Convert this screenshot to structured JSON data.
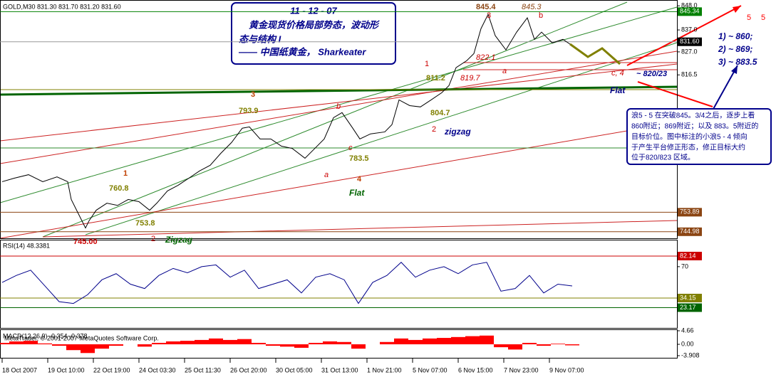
{
  "chart_data": [
    {
      "type": "line",
      "title": "GOLD,M30 831.30 831.70 831.20 831.60",
      "color": "#000000",
      "xlim": [
        0,
        947
      ],
      "x": [
        0,
        17,
        37,
        57,
        77,
        92,
        97,
        107,
        117,
        122,
        132,
        147,
        162,
        177,
        192,
        207,
        217,
        232,
        247,
        262,
        277,
        292,
        307,
        322,
        337,
        347,
        362,
        377,
        392,
        407,
        425,
        437,
        452,
        465,
        477,
        492,
        502,
        517,
        537,
        547,
        557,
        572,
        587,
        602,
        617,
        627,
        637,
        652,
        662,
        672,
        682,
        692,
        707,
        722,
        737,
        747,
        757,
        772,
        787,
        797
      ],
      "values": [
        767.8,
        769.4,
        771,
        767.8,
        770,
        767.8,
        759.7,
        753.2,
        746.7,
        750,
        754.8,
        758,
        757,
        759.7,
        758.7,
        754.8,
        758,
        763.6,
        766.2,
        769.4,
        772.7,
        775.3,
        780.8,
        785.7,
        792.2,
        792.8,
        787.3,
        787.3,
        784,
        783,
        778.5,
        782.4,
        787.3,
        797,
        799.3,
        792.2,
        787.3,
        789.6,
        790.5,
        793.8,
        805.1,
        802.5,
        801.9,
        805.1,
        808.4,
        811.6,
        819.8,
        823,
        826.2,
        837.6,
        844.1,
        834.4,
        827.9,
        836,
        842.5,
        832.7,
        836,
        831.1,
        832.7,
        830.5
      ],
      "ylim": [
        742,
        850
      ],
      "yticks": [
        {
          "value": 848,
          "label": "848.0"
        },
        {
          "value": 837,
          "label": "837.0"
        },
        {
          "value": 827,
          "label": "827.0"
        },
        816.5
      ],
      "levels": [
        {
          "value": 845.34,
          "color": "#008000"
        },
        {
          "value": 831.6,
          "label": "831.60",
          "color": "#000000"
        },
        {
          "value": 753.89,
          "color": "#8b4513"
        },
        {
          "value": 744.98,
          "color": "#8b4513"
        }
      ]
    },
    {
      "type": "line",
      "title": "RSI(14) 48.3381",
      "color": "#00008b",
      "xlim": [
        0,
        947
      ],
      "x": [
        0,
        20,
        40,
        60,
        80,
        100,
        120,
        140,
        160,
        180,
        200,
        220,
        240,
        260,
        280,
        300,
        320,
        340,
        360,
        380,
        400,
        420,
        440,
        460,
        480,
        500,
        520,
        540,
        560,
        580,
        600,
        620,
        640,
        660,
        680,
        700,
        720,
        740,
        760,
        780,
        800
      ],
      "values": [
        52,
        60,
        66,
        48,
        30,
        28,
        38,
        55,
        62,
        50,
        45,
        60,
        68,
        63,
        70,
        72,
        58,
        66,
        45,
        50,
        55,
        40,
        58,
        62,
        55,
        28,
        52,
        60,
        75,
        58,
        66,
        70,
        62,
        72,
        75,
        42,
        45,
        60,
        40,
        50,
        48
      ],
      "ylim": [
        0,
        100
      ],
      "yticks": [
        70
      ],
      "levels": [
        {
          "value": 82.14,
          "color": "#cc0000"
        },
        {
          "value": 34.15,
          "color": "#808000"
        },
        {
          "value": 23.17,
          "color": "#006400"
        }
      ]
    },
    {
      "type": "bar",
      "title": "MACD(12,26,9) -0.354 -0.378",
      "color": "#ff0000",
      "xlim": [
        0,
        947
      ],
      "x": [
        0,
        20,
        40,
        60,
        80,
        100,
        120,
        140,
        160,
        180,
        200,
        220,
        240,
        260,
        280,
        300,
        320,
        340,
        360,
        380,
        400,
        420,
        440,
        460,
        480,
        500,
        520,
        540,
        560,
        580,
        600,
        620,
        640,
        660,
        680,
        700,
        720,
        740,
        760,
        780,
        800
      ],
      "values": [
        0.5,
        1,
        1.2,
        0.3,
        -0.5,
        -2,
        -3,
        -1.5,
        -0.5,
        0,
        -0.8,
        0.5,
        1,
        1.2,
        1.5,
        2,
        1.5,
        1.8,
        0.5,
        -0.5,
        -0.8,
        -1.2,
        0.5,
        1,
        0.8,
        -1.5,
        0,
        0.8,
        2,
        1.5,
        2,
        2.2,
        2.5,
        2.8,
        3,
        -1,
        -1.8,
        0.5,
        -0.5,
        0.2,
        -0.354
      ],
      "ylim": [
        -3.908,
        4.66
      ],
      "yticks": [
        4.66,
        {
          "value": 0,
          "label": "0.00"
        },
        -3.908
      ],
      "xticks": [
        {
          "value": 0,
          "label": "18 Oct 2007"
        },
        {
          "value": 64,
          "label": "19 Oct 10:00"
        },
        {
          "value": 128,
          "label": "22 Oct 19:00"
        },
        {
          "value": 192,
          "label": "24 Oct 03:30"
        },
        {
          "value": 256,
          "label": "25 Oct 11:30"
        },
        {
          "value": 320,
          "label": "26 Oct 20:00"
        },
        {
          "value": 384,
          "label": "30 Oct 05:00"
        },
        {
          "value": 448,
          "label": "31 Oct 13:00"
        },
        {
          "value": 512,
          "label": "1 Nov 21:00"
        },
        {
          "value": 576,
          "label": "5 Nov 07:00"
        },
        {
          "value": 640,
          "label": "6 Nov 15:00"
        },
        {
          "value": 704,
          "label": "7 Nov 23:00"
        },
        {
          "value": 768,
          "label": "9 Nov 07:00"
        }
      ]
    }
  ],
  "copyright": "MetaTrader, © 2001-2007 MetaQuotes Software Corp.",
  "title_box": [
    "11 - 12 - 07",
    "黄金现货价格局部势态，波动形",
    "态与结构 I",
    "—— 中国纸黄金，    Sharkeater"
  ],
  "targets": [
    "1) ~ 860;",
    "2) ~ 869;",
    "3) ~ 883.5"
  ],
  "note": [
    "浪5 - 5 在突破845。3/4之后，逐步上看",
    "860附近；869附近；以及 883。5附近的",
    "目标价位。图中标注的小浪5 - 4 倾向",
    "于产生平台修正形态，修正目标大约",
    "位于820/823 区域。"
  ],
  "annotations": [
    "845.4",
    "845.3",
    "3",
    "b",
    "811.2",
    "804.7",
    "793.9",
    "783.5",
    "760.8",
    "753.8",
    "745.00",
    "822.1",
    "819.7",
    "a",
    "a",
    "b",
    "c",
    "1",
    "2",
    "zigzag",
    "3",
    "4",
    "Flat",
    "1",
    "2",
    "Zigzag",
    "c, 4",
    "~ 820/23",
    "Flat",
    "5",
    "5"
  ]
}
